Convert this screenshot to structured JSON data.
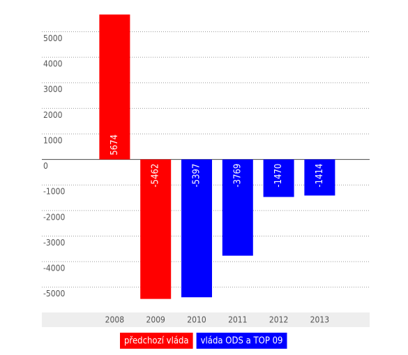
{
  "chart_data": {
    "type": "bar",
    "categories": [
      "2008",
      "2009",
      "2010",
      "2011",
      "2012",
      "2013"
    ],
    "series": [
      {
        "name": "předchozí vláda",
        "color": "#ff0000",
        "values": [
          5674,
          -5462,
          null,
          null,
          null,
          null
        ]
      },
      {
        "name": "vláda ODS a TOP 09",
        "color": "#0000ff",
        "values": [
          null,
          null,
          -5397,
          -3769,
          -1470,
          -1414
        ]
      }
    ],
    "ylim": [
      -5500,
      5750
    ],
    "yticks": [
      -5000,
      -4000,
      -3000,
      -2000,
      -1000,
      0,
      1000,
      2000,
      3000,
      4000,
      5000
    ],
    "grid": true
  }
}
